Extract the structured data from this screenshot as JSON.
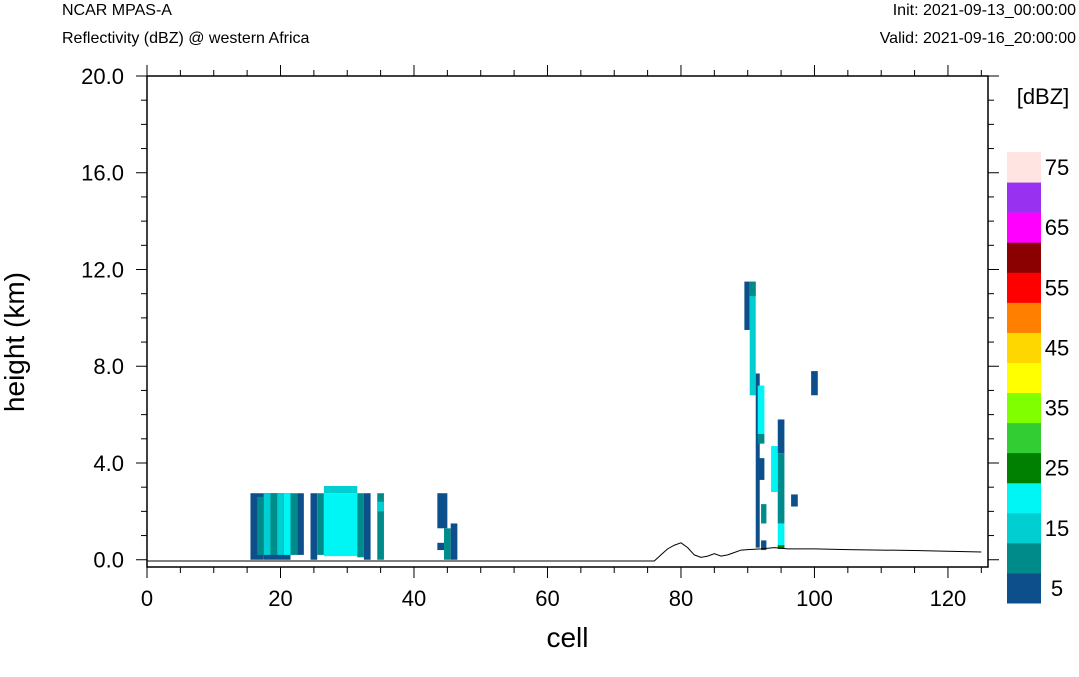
{
  "header": {
    "model": "NCAR MPAS-A",
    "field": "Reflectivity (dBZ) @ western Africa",
    "init": "Init: 2021-09-13_00:00:00",
    "valid": "Valid: 2021-09-16_20:00:00"
  },
  "chart_data": {
    "type": "heatmap",
    "xlabel": "cell",
    "ylabel": "height (km)",
    "xlim": [
      0,
      126
    ],
    "ylim": [
      -0.3,
      20.0
    ],
    "xticks": [
      0,
      20,
      40,
      60,
      80,
      100,
      120
    ],
    "xtick_labels": [
      "0",
      "20",
      "40",
      "60",
      "80",
      "100",
      "120"
    ],
    "yticks": [
      0,
      4,
      8,
      12,
      16,
      20
    ],
    "ytick_labels": [
      "0.0",
      "4.0",
      "8.0",
      "12.0",
      "16.0",
      "20.0"
    ],
    "colorbar": {
      "label": "[dBZ]",
      "levels": [
        5,
        10,
        15,
        20,
        25,
        30,
        35,
        40,
        45,
        50,
        55,
        60,
        65,
        70,
        75
      ],
      "labels": [
        "5",
        "15",
        "25",
        "35",
        "45",
        "55",
        "65",
        "75"
      ],
      "colors": [
        "#0d4f8b",
        "#008b8b",
        "#00ced1",
        "#00f5f5",
        "#008000",
        "#32cd32",
        "#7fff00",
        "#ffff00",
        "#ffd700",
        "#ff8000",
        "#ff0000",
        "#8b0000",
        "#ff00ff",
        "#9932f0",
        "#ffe4e1"
      ]
    },
    "terrain": {
      "x": [
        0,
        76,
        77,
        78,
        79,
        80,
        81,
        82,
        83,
        84,
        85,
        86,
        87,
        88,
        89,
        90,
        92,
        94,
        96,
        98,
        100,
        105,
        110,
        115,
        120,
        125
      ],
      "y": [
        -0.05,
        -0.05,
        0.2,
        0.45,
        0.6,
        0.7,
        0.5,
        0.2,
        0.1,
        0.15,
        0.25,
        0.15,
        0.2,
        0.3,
        0.4,
        0.42,
        0.45,
        0.5,
        0.45,
        0.45,
        0.45,
        0.42,
        0.4,
        0.38,
        0.35,
        0.32
      ]
    },
    "cells": [
      {
        "x0": 15.5,
        "x1": 17.5,
        "y0": 0,
        "y1": 2.75,
        "v": 5
      },
      {
        "x0": 16.5,
        "x1": 17.5,
        "y0": 0.2,
        "y1": 2.6,
        "v": 10
      },
      {
        "x0": 17.5,
        "x1": 21.5,
        "y0": 0,
        "y1": 2.75,
        "v": 5
      },
      {
        "x0": 17.5,
        "x1": 18.5,
        "y0": 0.2,
        "y1": 2.75,
        "v": 15
      },
      {
        "x0": 18.5,
        "x1": 19.5,
        "y0": 0.2,
        "y1": 2.75,
        "v": 10
      },
      {
        "x0": 19.5,
        "x1": 20.5,
        "y0": 0.2,
        "y1": 2.75,
        "v": 15
      },
      {
        "x0": 20.5,
        "x1": 21.5,
        "y0": 0.2,
        "y1": 2.75,
        "v": 20
      },
      {
        "x0": 21.5,
        "x1": 22.5,
        "y0": 0.2,
        "y1": 2.75,
        "v": 10
      },
      {
        "x0": 22.5,
        "x1": 23.5,
        "y0": 0.2,
        "y1": 2.75,
        "v": 5
      },
      {
        "x0": 24.5,
        "x1": 25.5,
        "y0": 0,
        "y1": 2.75,
        "v": 5
      },
      {
        "x0": 25.5,
        "x1": 26.5,
        "y0": 0.2,
        "y1": 2.75,
        "v": 10
      },
      {
        "x0": 26.5,
        "x1": 31.5,
        "y0": 0.15,
        "y1": 2.75,
        "v": 20
      },
      {
        "x0": 26.5,
        "x1": 31.5,
        "y0": 2.75,
        "y1": 3.05,
        "v": 15
      },
      {
        "x0": 31.5,
        "x1": 32.5,
        "y0": 0.1,
        "y1": 2.75,
        "v": 10
      },
      {
        "x0": 32.5,
        "x1": 33.5,
        "y0": 0,
        "y1": 2.75,
        "v": 5
      },
      {
        "x0": 34.5,
        "x1": 35.5,
        "y0": 0,
        "y1": 2.75,
        "v": 10
      },
      {
        "x0": 34.5,
        "x1": 35.5,
        "y0": 2.0,
        "y1": 2.4,
        "v": 15
      },
      {
        "x0": 43.5,
        "x1": 45.0,
        "y0": 1.3,
        "y1": 2.75,
        "v": 5
      },
      {
        "x0": 43.5,
        "x1": 44.5,
        "y0": 0.4,
        "y1": 0.7,
        "v": 5
      },
      {
        "x0": 44.5,
        "x1": 45.5,
        "y0": 0,
        "y1": 1.3,
        "v": 10
      },
      {
        "x0": 45.5,
        "x1": 46.5,
        "y0": 0,
        "y1": 1.5,
        "v": 5
      },
      {
        "x0": 89.5,
        "x1": 90.3,
        "y0": 9.5,
        "y1": 11.5,
        "v": 5
      },
      {
        "x0": 90.3,
        "x1": 91.2,
        "y0": 6.8,
        "y1": 11.5,
        "v": 15
      },
      {
        "x0": 90.3,
        "x1": 91.2,
        "y0": 10.9,
        "y1": 11.5,
        "v": 10
      },
      {
        "x0": 91.2,
        "x1": 91.8,
        "y0": 0.5,
        "y1": 7.7,
        "v": 5
      },
      {
        "x0": 91.5,
        "x1": 92.5,
        "y0": 5.2,
        "y1": 7.2,
        "v": 20
      },
      {
        "x0": 91.5,
        "x1": 92.5,
        "y0": 4.8,
        "y1": 5.2,
        "v": 10
      },
      {
        "x0": 91.5,
        "x1": 92.5,
        "y0": 3.3,
        "y1": 4.2,
        "v": 5
      },
      {
        "x0": 92.0,
        "x1": 92.8,
        "y0": 1.5,
        "y1": 2.3,
        "v": 10
      },
      {
        "x0": 92.0,
        "x1": 92.8,
        "y0": 0.4,
        "y1": 0.8,
        "v": 5
      },
      {
        "x0": 93.5,
        "x1": 94.5,
        "y0": 2.8,
        "y1": 4.7,
        "v": 20
      },
      {
        "x0": 94.5,
        "x1": 95.5,
        "y0": 4.4,
        "y1": 5.8,
        "v": 5
      },
      {
        "x0": 94.5,
        "x1": 95.5,
        "y0": 1.5,
        "y1": 4.4,
        "v": 10
      },
      {
        "x0": 94.5,
        "x1": 95.5,
        "y0": 0.5,
        "y1": 1.5,
        "v": 20
      },
      {
        "x0": 94.5,
        "x1": 95.5,
        "y0": 0.45,
        "y1": 0.6,
        "v": 25
      },
      {
        "x0": 96.5,
        "x1": 97.5,
        "y0": 2.2,
        "y1": 2.7,
        "v": 5
      },
      {
        "x0": 99.5,
        "x1": 100.5,
        "y0": 6.8,
        "y1": 7.8,
        "v": 5
      }
    ]
  }
}
